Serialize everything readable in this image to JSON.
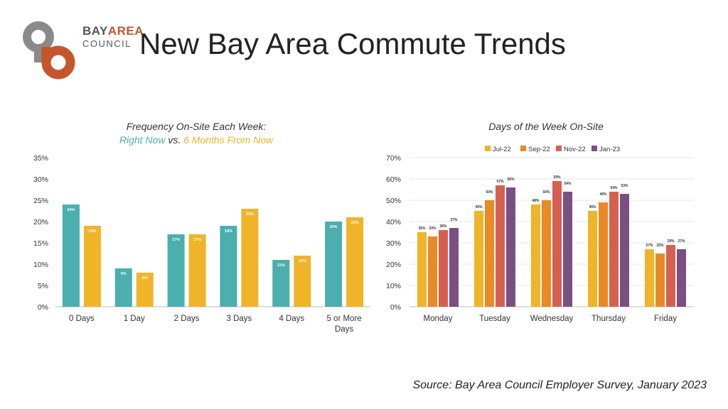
{
  "title": "New Bay Area Commute Trends",
  "logo": {
    "line1_a": "BAY",
    "line1_b": "AREA",
    "line2": "COUNCIL"
  },
  "source": "Source: Bay Area Council Employer Survey, January 2023",
  "colors": {
    "teal": "#4aafad",
    "gold": "#f0b429",
    "orange": "#e98a24",
    "red": "#d65f50",
    "purple": "#7a4f82"
  },
  "chart_data": [
    {
      "type": "bar",
      "title_line1": "Frequency On-Site Each Week:",
      "title_line2_a": "Right Now",
      "title_line2_b": " vs. ",
      "title_line2_c": "6 Months From Now",
      "categories": [
        "0 Days",
        "1 Day",
        "2 Days",
        "3 Days",
        "4 Days",
        "5 or More Days"
      ],
      "category_lines": [
        [
          "0 Days"
        ],
        [
          "1 Day"
        ],
        [
          "2 Days"
        ],
        [
          "3 Days"
        ],
        [
          "4 Days"
        ],
        [
          "5 or More",
          "Days"
        ]
      ],
      "series": [
        {
          "values": [
            24,
            9,
            17,
            19,
            11,
            20
          ],
          "labels": [
            "24%",
            "9%",
            "17%",
            "19%",
            "11%",
            "20%"
          ],
          "color": "#4aafad"
        },
        {
          "values": [
            19,
            8,
            17,
            23,
            12,
            21
          ],
          "labels": [
            "19%",
            "8%",
            "17%",
            "23%",
            "12%",
            "21%"
          ],
          "color": "#f0b429"
        }
      ],
      "yticks": [
        "0%",
        "5%",
        "10%",
        "15%",
        "20%",
        "25%",
        "30%",
        "35%"
      ],
      "ylim": [
        0,
        35
      ],
      "grid": false
    },
    {
      "type": "bar",
      "title": "Days of the Week On-Site",
      "categories": [
        "Monday",
        "Tuesday",
        "Wednesday",
        "Thursday",
        "Friday"
      ],
      "series": [
        {
          "name": "Jul-22",
          "values": [
            35,
            45,
            48,
            45,
            27
          ],
          "labels": [
            "35%",
            "45%",
            "48%",
            "45%",
            "27%"
          ],
          "color": "#f0b429"
        },
        {
          "name": "Sep-22",
          "values": [
            33,
            50,
            50,
            49,
            25
          ],
          "labels": [
            "33%",
            "50%",
            "50%",
            "49%",
            "25%"
          ],
          "color": "#e98a24"
        },
        {
          "name": "Nov-22",
          "values": [
            36,
            57,
            59,
            54,
            29
          ],
          "labels": [
            "36%",
            "57%",
            "59%",
            "54%",
            "29%"
          ],
          "color": "#d65f50"
        },
        {
          "name": "Jan-23",
          "values": [
            37,
            56,
            54,
            53,
            27
          ],
          "labels": [
            "37%",
            "56%",
            "54%",
            "53%",
            "27%"
          ],
          "color": "#7a4f82"
        }
      ],
      "yticks": [
        "0%",
        "10%",
        "20%",
        "30%",
        "40%",
        "50%",
        "60%",
        "70%"
      ],
      "ylim": [
        0,
        70
      ],
      "legend": "top",
      "grid": true
    }
  ]
}
